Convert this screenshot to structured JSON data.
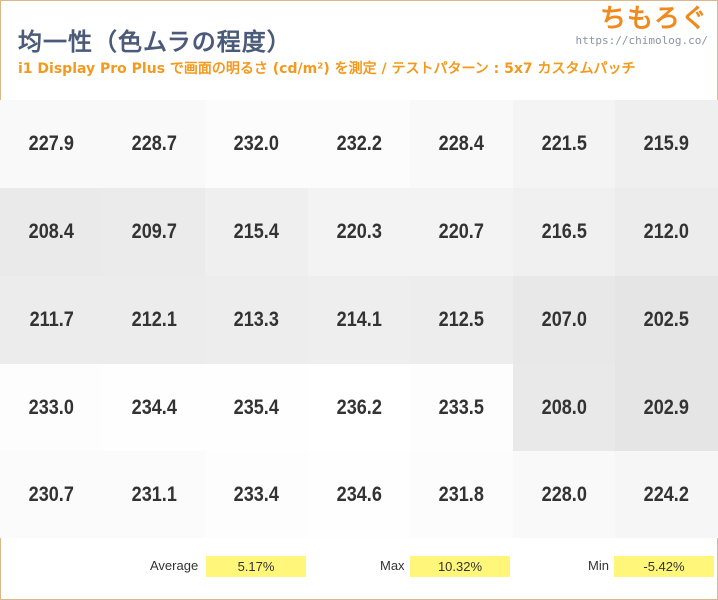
{
  "header": {
    "title": "均一性（色ムラの程度）",
    "subtitle": "i1 Display Pro Plus で画面の明るさ (cd/m²) を測定 / テストパターン : 5x7 カスタムパッチ",
    "logo_text": "ちもろぐ",
    "logo_url": "https://chimolog.co/"
  },
  "chart_data": {
    "type": "heatmap",
    "unit": "cd/m²",
    "rows": 5,
    "cols": 7,
    "values": [
      [
        227.9,
        228.7,
        232.0,
        232.2,
        228.4,
        221.5,
        215.9
      ],
      [
        208.4,
        209.7,
        215.4,
        220.3,
        220.7,
        216.5,
        212.0
      ],
      [
        211.7,
        212.1,
        213.3,
        214.1,
        212.5,
        207.0,
        202.5
      ],
      [
        233.0,
        234.4,
        235.4,
        236.2,
        233.5,
        208.0,
        202.9
      ],
      [
        230.7,
        231.1,
        233.4,
        234.6,
        231.8,
        228.0,
        224.2
      ]
    ],
    "color_scale": {
      "low": "#e5e5e5",
      "high": "#ffffff"
    }
  },
  "stats": {
    "average_label": "Average",
    "average_value": "5.17%",
    "max_label": "Max",
    "max_value": "10.32%",
    "min_label": "Min",
    "min_value": "-5.42%",
    "highlight_color": "#fff67a"
  },
  "colors": {
    "title": "#4a5a78",
    "subtitle": "#f39a1e",
    "logo": "#f08a1c"
  }
}
